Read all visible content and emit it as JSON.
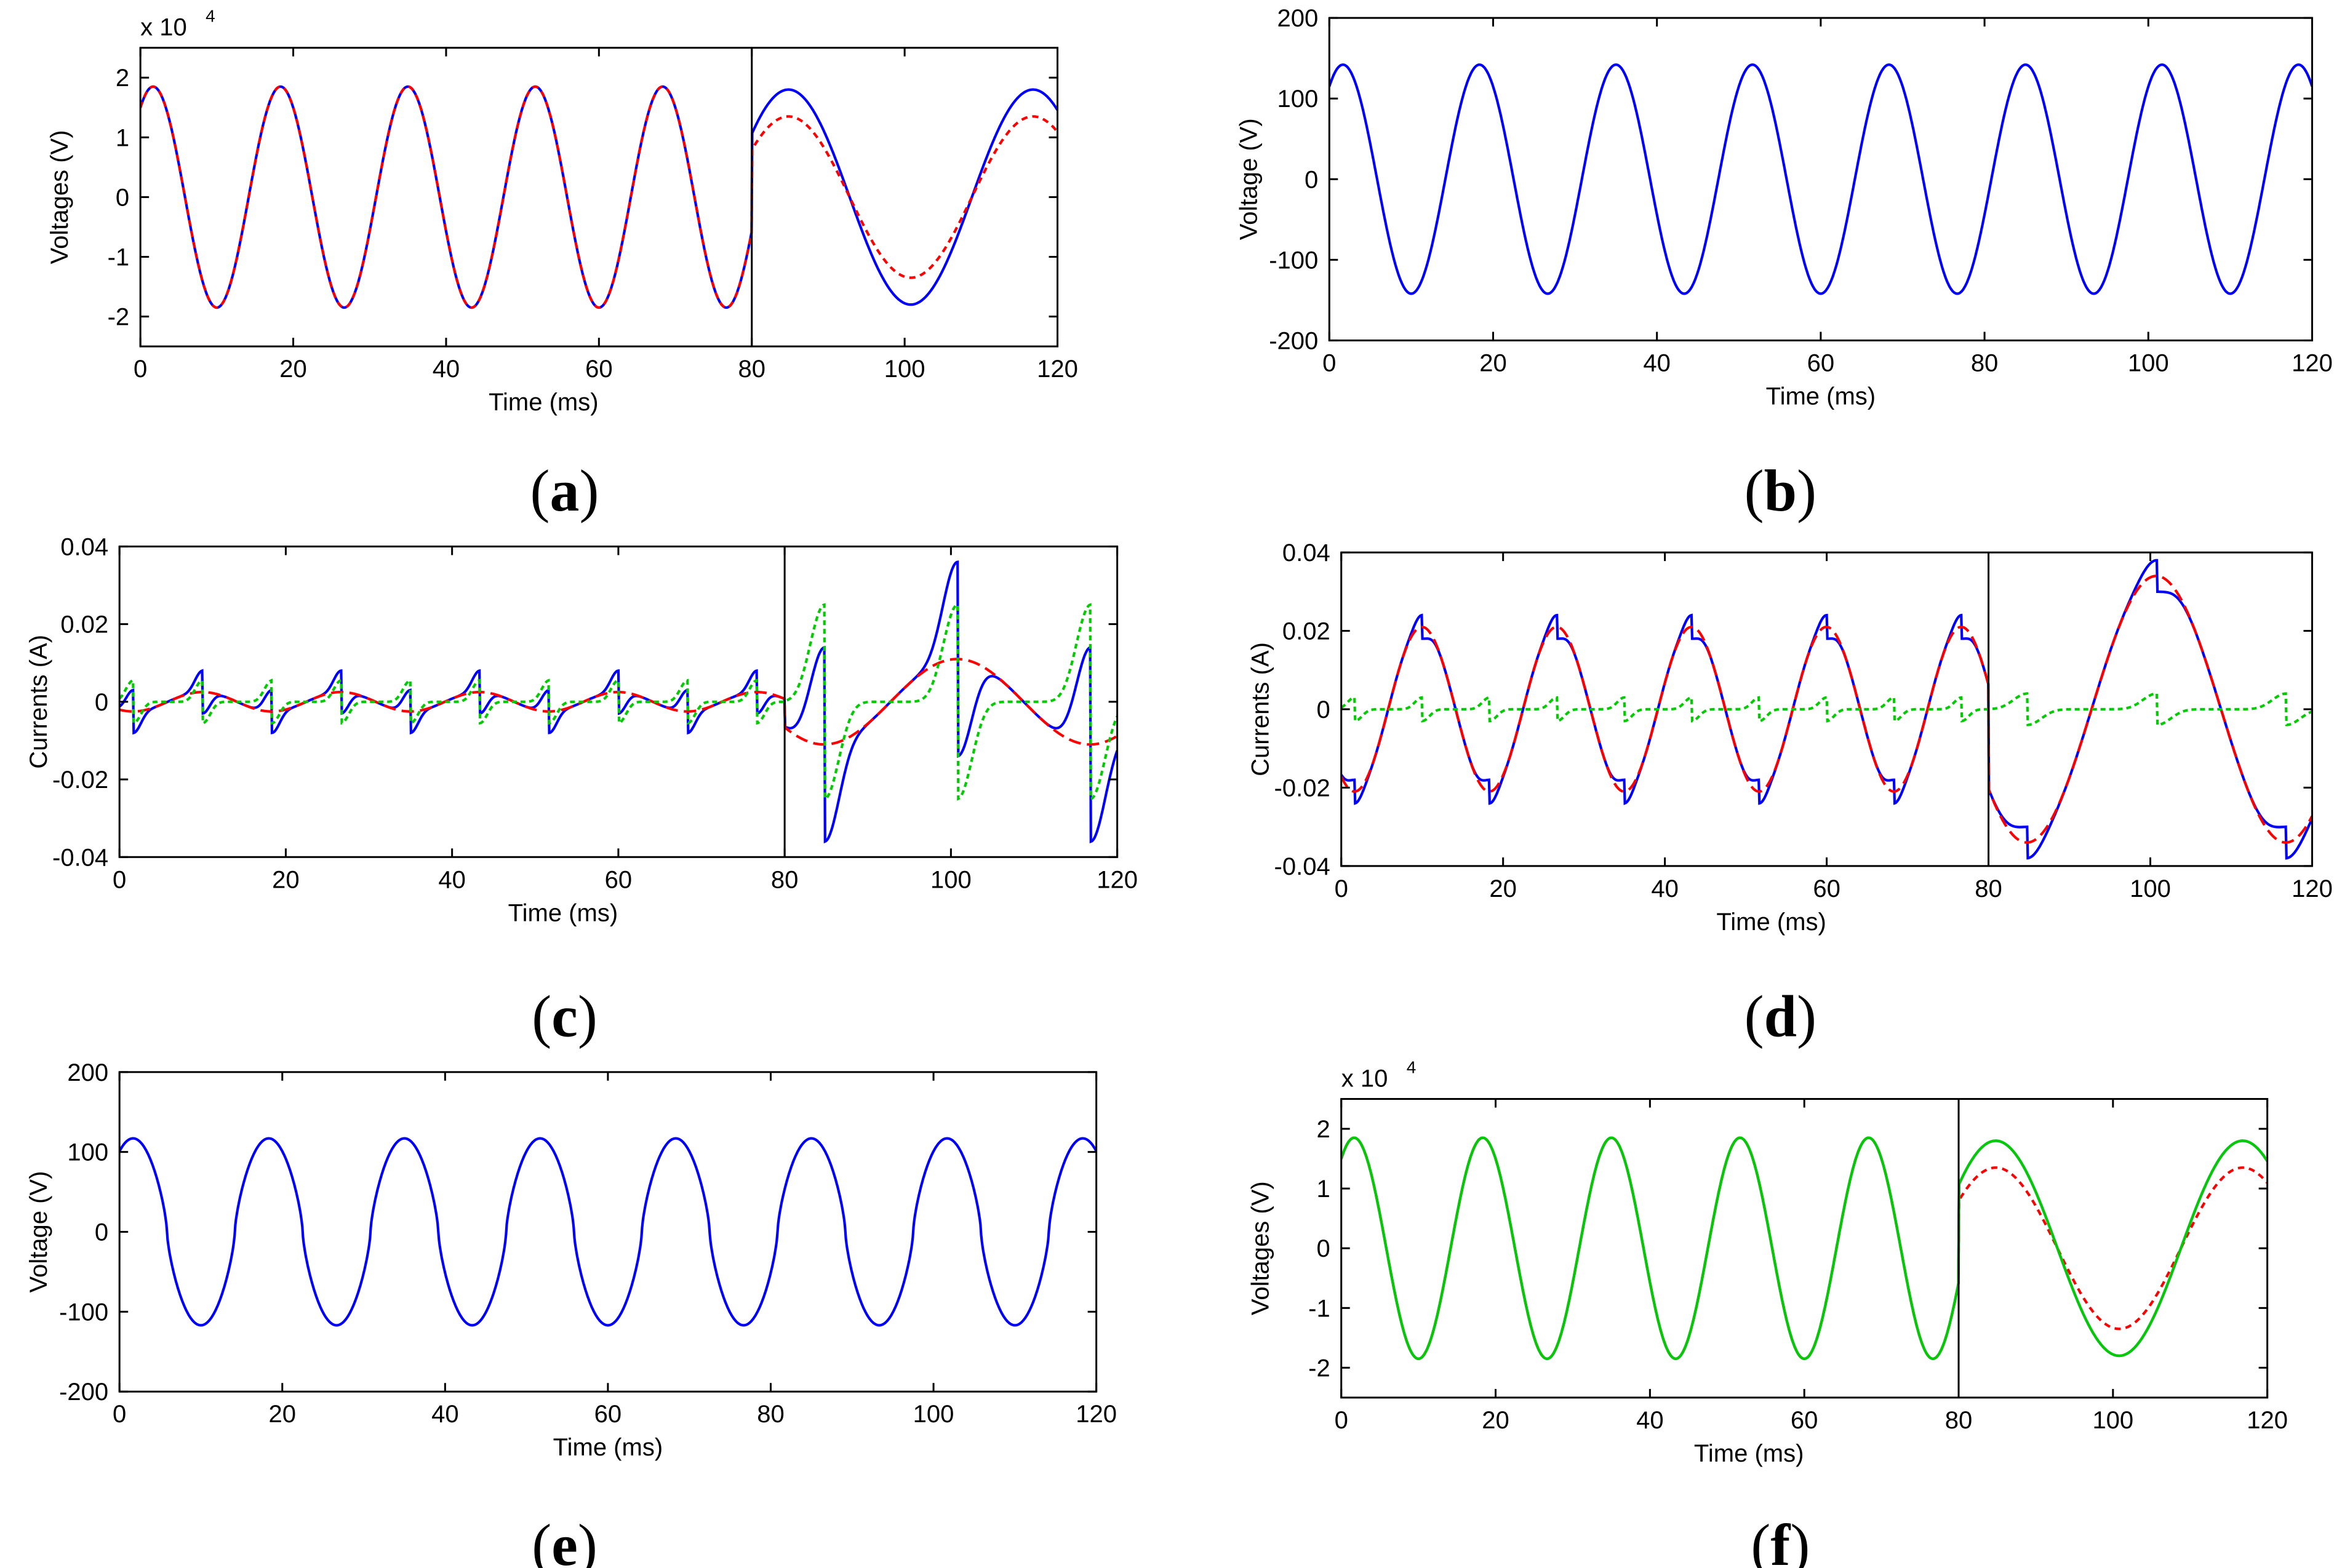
{
  "colors": {
    "blue": "#0000ff",
    "red": "#ff0000",
    "green": "#00cc00",
    "black": "#000000"
  },
  "chart_data": [
    {
      "id": "a",
      "type": "line",
      "caption": "a",
      "xlabel": "Time (ms)",
      "ylabel": "Voltages (V)",
      "exponent_label": "x 10",
      "exponent_power": "4",
      "xlim": [
        0,
        120
      ],
      "ylim": [
        -2.5,
        2.5
      ],
      "xticks": [
        "0",
        "20",
        "40",
        "60",
        "80",
        "100",
        "120"
      ],
      "yticks": [
        "-2",
        "-1",
        "0",
        "1",
        "2"
      ],
      "split_at": 80,
      "series": [
        {
          "name": "blue-solid",
          "color": "#0000ff",
          "dash": "",
          "kind": "voltage",
          "amp": 1.85,
          "zoom_amp": 1.8,
          "phase_shift": 0,
          "periods": 6
        },
        {
          "name": "red-dashed",
          "color": "#ff0000",
          "dash": "10,8",
          "kind": "voltage",
          "amp": 1.85,
          "zoom_amp": 1.35,
          "phase_shift": 0,
          "periods": 6
        }
      ]
    },
    {
      "id": "b",
      "type": "line",
      "caption": "b",
      "xlabel": "Time (ms)",
      "ylabel": "Voltage (V)",
      "xlim": [
        0,
        120
      ],
      "ylim": [
        -200,
        200
      ],
      "xticks": [
        "0",
        "20",
        "40",
        "60",
        "80",
        "100",
        "120"
      ],
      "yticks": [
        "-200",
        "-100",
        "0",
        "100",
        "200"
      ],
      "series": [
        {
          "name": "blue-solid",
          "color": "#0000ff",
          "dash": "",
          "kind": "voltage",
          "amp": 142
        }
      ]
    },
    {
      "id": "c",
      "type": "line",
      "caption": "c",
      "xlabel": "Time (ms)",
      "ylabel": "Currents (A)",
      "xlim": [
        0,
        120
      ],
      "ylim": [
        -0.04,
        0.04
      ],
      "xticks": [
        "0",
        "20",
        "40",
        "60",
        "80",
        "100",
        "120"
      ],
      "yticks": [
        "-0.04",
        "-0.02",
        "0",
        "0.02",
        "0.04"
      ],
      "split_at": 80,
      "series": [
        {
          "name": "blue-total",
          "color": "#0000ff",
          "dash": "",
          "kind": "total",
          "cap_amp": 0.0025,
          "spike_amp": 0.0055,
          "zoom_cap_amp": 0.011,
          "zoom_spike_amp": 0.025
        },
        {
          "name": "red-capacitive",
          "color": "#ff0000",
          "dash": "20,10",
          "kind": "cap",
          "cap_amp": 0.0025,
          "zoom_cap_amp": 0.011
        },
        {
          "name": "green-spike",
          "color": "#00cc00",
          "dash": "8,6",
          "kind": "spike",
          "spike_amp": 0.0055,
          "zoom_spike_amp": 0.025
        }
      ]
    },
    {
      "id": "d",
      "type": "line",
      "caption": "d",
      "xlabel": "Time (ms)",
      "ylabel": "Currents (A)",
      "xlim": [
        0,
        120
      ],
      "ylim": [
        -0.04,
        0.04
      ],
      "xticks": [
        "0",
        "20",
        "40",
        "60",
        "80",
        "100",
        "120"
      ],
      "yticks": [
        "-0.04",
        "-0.02",
        "0",
        "0.02",
        "0.04"
      ],
      "split_at": 80,
      "series": [
        {
          "name": "blue-total",
          "color": "#0000ff",
          "dash": "",
          "kind": "total",
          "cap_amp": 0.021,
          "spike_amp": 0.003,
          "zoom_cap_amp": 0.034,
          "zoom_spike_amp": 0.004
        },
        {
          "name": "red-capacitive",
          "color": "#ff0000",
          "dash": "20,10",
          "kind": "cap",
          "cap_amp": 0.021,
          "zoom_cap_amp": 0.034
        },
        {
          "name": "green-spike",
          "color": "#00cc00",
          "dash": "8,6",
          "kind": "spike",
          "spike_amp": 0.003,
          "zoom_spike_amp": 0.004
        }
      ]
    },
    {
      "id": "e",
      "type": "line",
      "caption": "e",
      "xlabel": "Time (ms)",
      "ylabel": "Voltage (V)",
      "xlim": [
        0,
        120
      ],
      "ylim": [
        -200,
        200
      ],
      "xticks": [
        "0",
        "20",
        "40",
        "60",
        "80",
        "100",
        "120"
      ],
      "yticks": [
        "-200",
        "-100",
        "0",
        "100",
        "200"
      ],
      "series": [
        {
          "name": "blue-solid",
          "color": "#0000ff",
          "dash": "",
          "kind": "flat",
          "amp": 117
        }
      ]
    },
    {
      "id": "f",
      "type": "line",
      "caption": "f",
      "xlabel": "Time (ms)",
      "ylabel": "Voltages (V)",
      "exponent_label": "x 10",
      "exponent_power": "4",
      "xlim": [
        0,
        120
      ],
      "ylim": [
        -2.5,
        2.5
      ],
      "xticks": [
        "0",
        "20",
        "40",
        "60",
        "80",
        "100",
        "120"
      ],
      "yticks": [
        "-2",
        "-1",
        "0",
        "1",
        "2"
      ],
      "split_at": 80,
      "series": [
        {
          "name": "blue-solid",
          "color": "#0000ff",
          "dash": "",
          "kind": "voltage",
          "amp": 1.85,
          "zoom_amp": 1.8
        },
        {
          "name": "red-dashed",
          "color": "#ff0000",
          "dash": "10,8",
          "kind": "voltage",
          "amp": 1.85,
          "zoom_amp": 1.35
        },
        {
          "name": "green-solid",
          "color": "#00cc00",
          "dash": "",
          "kind": "voltage",
          "amp": 1.85,
          "zoom_amp": 1.8
        }
      ]
    }
  ]
}
